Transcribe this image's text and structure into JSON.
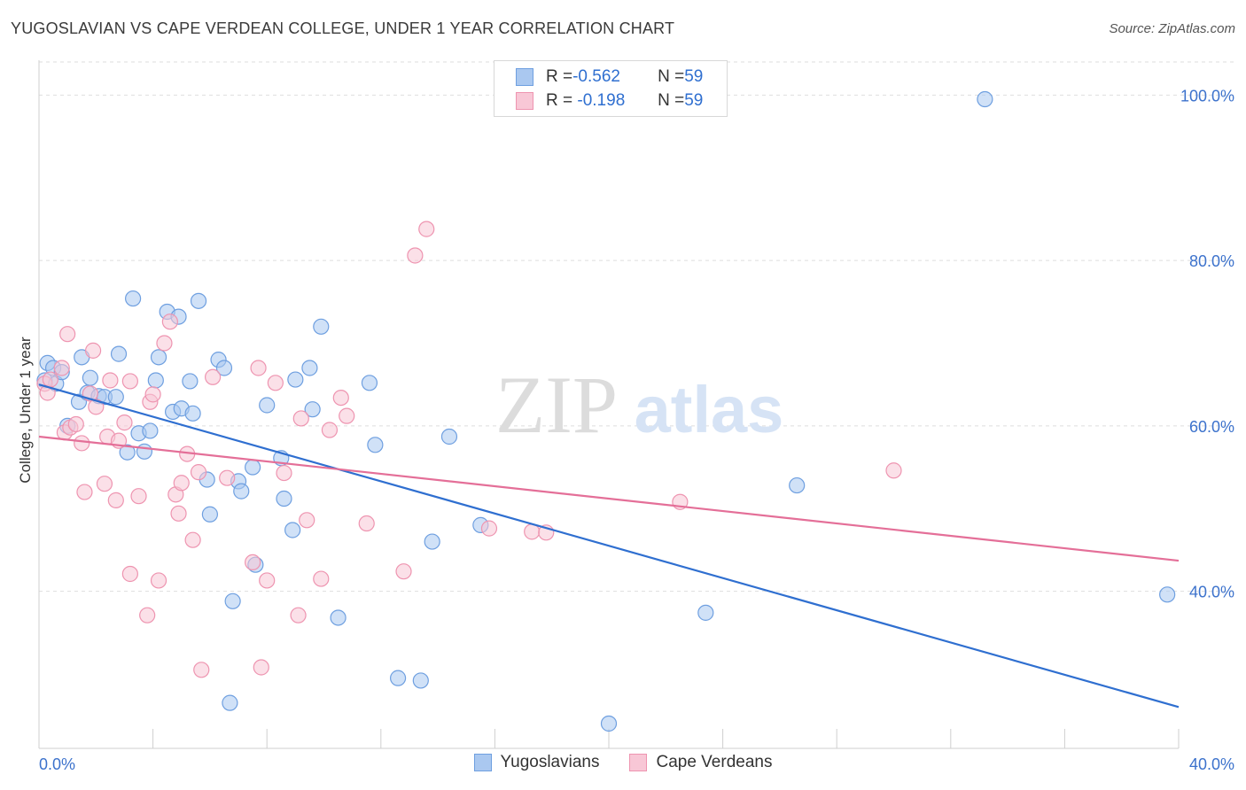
{
  "title": "YUGOSLAVIAN VS CAPE VERDEAN COLLEGE, UNDER 1 YEAR CORRELATION CHART",
  "source": "Source: ZipAtlas.com",
  "watermark": {
    "zip": "ZIP",
    "atlas": "atlas"
  },
  "stats_box": {
    "rows": [
      {
        "r_label": "R = ",
        "r_value": "-0.562",
        "n_label": "N = ",
        "n_value": "59",
        "color": "#aac8f0",
        "border": "#6e9fe0"
      },
      {
        "r_label": "R = ",
        "r_value": " -0.198",
        "n_label": "N = ",
        "n_value": "59",
        "color": "#f8c7d6",
        "border": "#ee94b0"
      }
    ]
  },
  "legend": [
    {
      "label": "Yugoslavians",
      "color": "#aac8f0",
      "border": "#6e9fe0"
    },
    {
      "label": "Cape Verdeans",
      "color": "#f8c7d6",
      "border": "#ee94b0"
    }
  ],
  "chart_data": {
    "type": "scatter",
    "title": "YUGOSLAVIAN VS CAPE VERDEAN COLLEGE, UNDER 1 YEAR CORRELATION CHART",
    "xlabel": "",
    "ylabel": "College, Under 1 year",
    "xlim": [
      0,
      40
    ],
    "ylim": [
      21,
      104
    ],
    "x_tick_labels": [
      "0.0%",
      "40.0%"
    ],
    "y_ticks": [
      100,
      80,
      60,
      40
    ],
    "y_tick_labels": [
      "100.0%",
      "80.0%",
      "60.0%",
      "40.0%"
    ],
    "grid": true,
    "legend_position": "bottom",
    "series": [
      {
        "name": "Yugoslavians",
        "color": "#6e9fe0",
        "fill": "#aac8f0",
        "trend_color": "#2f6fd0",
        "trend": [
          [
            0,
            65.0
          ],
          [
            40,
            26.0
          ]
        ],
        "points": [
          [
            0.2,
            65.5
          ],
          [
            0.3,
            67.6
          ],
          [
            0.5,
            67.0
          ],
          [
            0.6,
            65.1
          ],
          [
            0.8,
            66.5
          ],
          [
            1.0,
            60.0
          ],
          [
            1.4,
            62.9
          ],
          [
            1.5,
            68.3
          ],
          [
            1.7,
            64.0
          ],
          [
            1.8,
            65.8
          ],
          [
            2.1,
            63.6
          ],
          [
            2.3,
            63.5
          ],
          [
            2.7,
            63.5
          ],
          [
            2.8,
            68.7
          ],
          [
            3.1,
            56.8
          ],
          [
            3.3,
            75.4
          ],
          [
            3.5,
            59.1
          ],
          [
            3.7,
            56.9
          ],
          [
            3.9,
            59.4
          ],
          [
            4.1,
            65.5
          ],
          [
            4.2,
            68.3
          ],
          [
            4.5,
            73.8
          ],
          [
            4.7,
            61.7
          ],
          [
            4.9,
            73.2
          ],
          [
            5.0,
            62.1
          ],
          [
            5.3,
            65.4
          ],
          [
            5.4,
            61.5
          ],
          [
            5.6,
            75.1
          ],
          [
            5.9,
            53.5
          ],
          [
            6.0,
            49.3
          ],
          [
            6.3,
            68.0
          ],
          [
            6.5,
            67.0
          ],
          [
            6.7,
            26.5
          ],
          [
            6.8,
            38.8
          ],
          [
            7.0,
            53.3
          ],
          [
            7.1,
            52.1
          ],
          [
            7.5,
            55.0
          ],
          [
            7.6,
            43.2
          ],
          [
            8.0,
            62.5
          ],
          [
            8.5,
            56.1
          ],
          [
            8.6,
            51.2
          ],
          [
            8.9,
            47.4
          ],
          [
            9.0,
            65.6
          ],
          [
            9.5,
            67.0
          ],
          [
            9.6,
            62.0
          ],
          [
            9.9,
            72.0
          ],
          [
            10.5,
            36.8
          ],
          [
            11.6,
            65.2
          ],
          [
            11.8,
            57.7
          ],
          [
            12.6,
            29.5
          ],
          [
            13.4,
            29.2
          ],
          [
            13.8,
            46.0
          ],
          [
            14.4,
            58.7
          ],
          [
            15.5,
            48.0
          ],
          [
            20.0,
            24.0
          ],
          [
            23.4,
            37.4
          ],
          [
            26.6,
            52.8
          ],
          [
            33.2,
            99.5
          ],
          [
            39.6,
            39.6
          ]
        ]
      },
      {
        "name": "Cape Verdeans",
        "color": "#ee94b0",
        "fill": "#f8c7d6",
        "trend_color": "#e46f98",
        "trend": [
          [
            0,
            58.7
          ],
          [
            40,
            43.7
          ]
        ],
        "points": [
          [
            0.2,
            65.1
          ],
          [
            0.3,
            64.0
          ],
          [
            0.4,
            65.6
          ],
          [
            0.8,
            67.0
          ],
          [
            0.9,
            59.2
          ],
          [
            1.0,
            71.1
          ],
          [
            1.1,
            59.8
          ],
          [
            1.3,
            60.2
          ],
          [
            1.5,
            57.9
          ],
          [
            1.6,
            52.0
          ],
          [
            1.8,
            63.9
          ],
          [
            1.9,
            69.1
          ],
          [
            2.0,
            62.3
          ],
          [
            2.3,
            53.0
          ],
          [
            2.4,
            58.7
          ],
          [
            2.5,
            65.5
          ],
          [
            2.7,
            51.0
          ],
          [
            2.8,
            58.2
          ],
          [
            3.0,
            60.4
          ],
          [
            3.2,
            65.4
          ],
          [
            3.2,
            42.1
          ],
          [
            3.5,
            51.5
          ],
          [
            3.8,
            37.1
          ],
          [
            3.9,
            62.9
          ],
          [
            4.0,
            63.8
          ],
          [
            4.2,
            41.3
          ],
          [
            4.4,
            70.0
          ],
          [
            4.6,
            72.6
          ],
          [
            4.8,
            51.7
          ],
          [
            4.9,
            49.4
          ],
          [
            5.0,
            53.1
          ],
          [
            5.2,
            56.6
          ],
          [
            5.4,
            46.2
          ],
          [
            5.6,
            54.4
          ],
          [
            5.7,
            30.5
          ],
          [
            6.1,
            65.9
          ],
          [
            6.6,
            53.7
          ],
          [
            7.5,
            43.5
          ],
          [
            7.7,
            67.0
          ],
          [
            7.8,
            30.8
          ],
          [
            8.0,
            41.3
          ],
          [
            8.3,
            65.2
          ],
          [
            8.6,
            54.3
          ],
          [
            9.1,
            37.1
          ],
          [
            9.2,
            60.9
          ],
          [
            9.4,
            48.6
          ],
          [
            9.9,
            41.5
          ],
          [
            10.2,
            59.5
          ],
          [
            10.6,
            63.4
          ],
          [
            10.8,
            61.2
          ],
          [
            11.5,
            48.2
          ],
          [
            12.8,
            42.4
          ],
          [
            13.2,
            80.6
          ],
          [
            13.6,
            83.8
          ],
          [
            15.8,
            47.6
          ],
          [
            17.3,
            47.2
          ],
          [
            17.8,
            47.1
          ],
          [
            22.5,
            50.8
          ],
          [
            30.0,
            54.6
          ]
        ]
      }
    ]
  }
}
